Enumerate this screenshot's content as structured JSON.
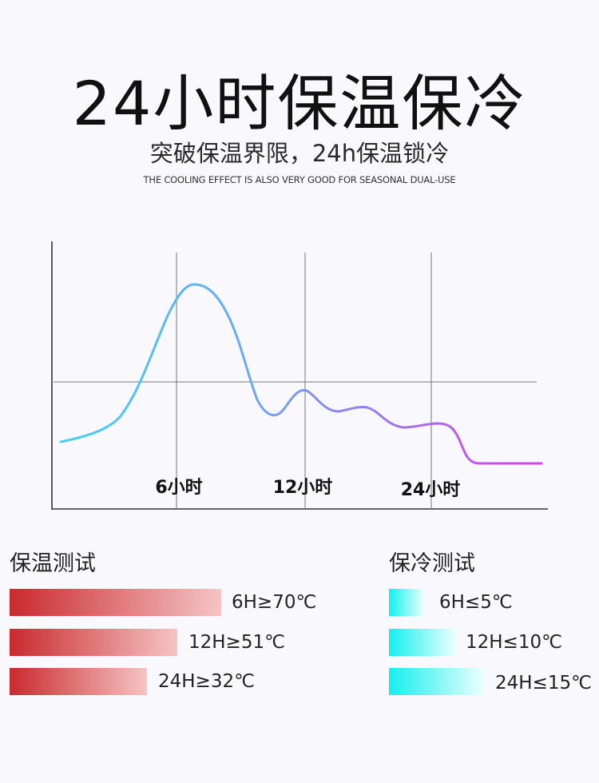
{
  "header": {
    "title": "24小时保温保冷",
    "subtitle": "突破保温界限，24h保温锁冷",
    "tagline": "THE COOLING EFFECT IS ALSO VERY GOOD FOR SEASONAL DUAL-USE"
  },
  "chart_data": {
    "type": "line",
    "title": "",
    "xlabel": "",
    "ylabel": "",
    "tick_labels": [
      "6小时",
      "12小时",
      "24小时"
    ],
    "grid": true,
    "legend": "none",
    "gradient_colors": [
      "#3fd2f2",
      "#d83fe6"
    ]
  },
  "keep_warm": {
    "title": "保温测试",
    "color_start": "#c92a2e",
    "color_end": "#f6c4c4",
    "items": [
      {
        "label": "6H≥70℃",
        "value": 70
      },
      {
        "label": "12H≥51℃",
        "value": 51
      },
      {
        "label": "24H≥32℃",
        "value": 32
      }
    ]
  },
  "keep_cold": {
    "title": "保冷测试",
    "color_start": "#14f0ee",
    "color_end": "#eefefe",
    "items": [
      {
        "label": "6H≤5℃",
        "value": 5
      },
      {
        "label": "12H≤10℃",
        "value": 10
      },
      {
        "label": "24H≤15℃",
        "value": 15
      }
    ]
  }
}
